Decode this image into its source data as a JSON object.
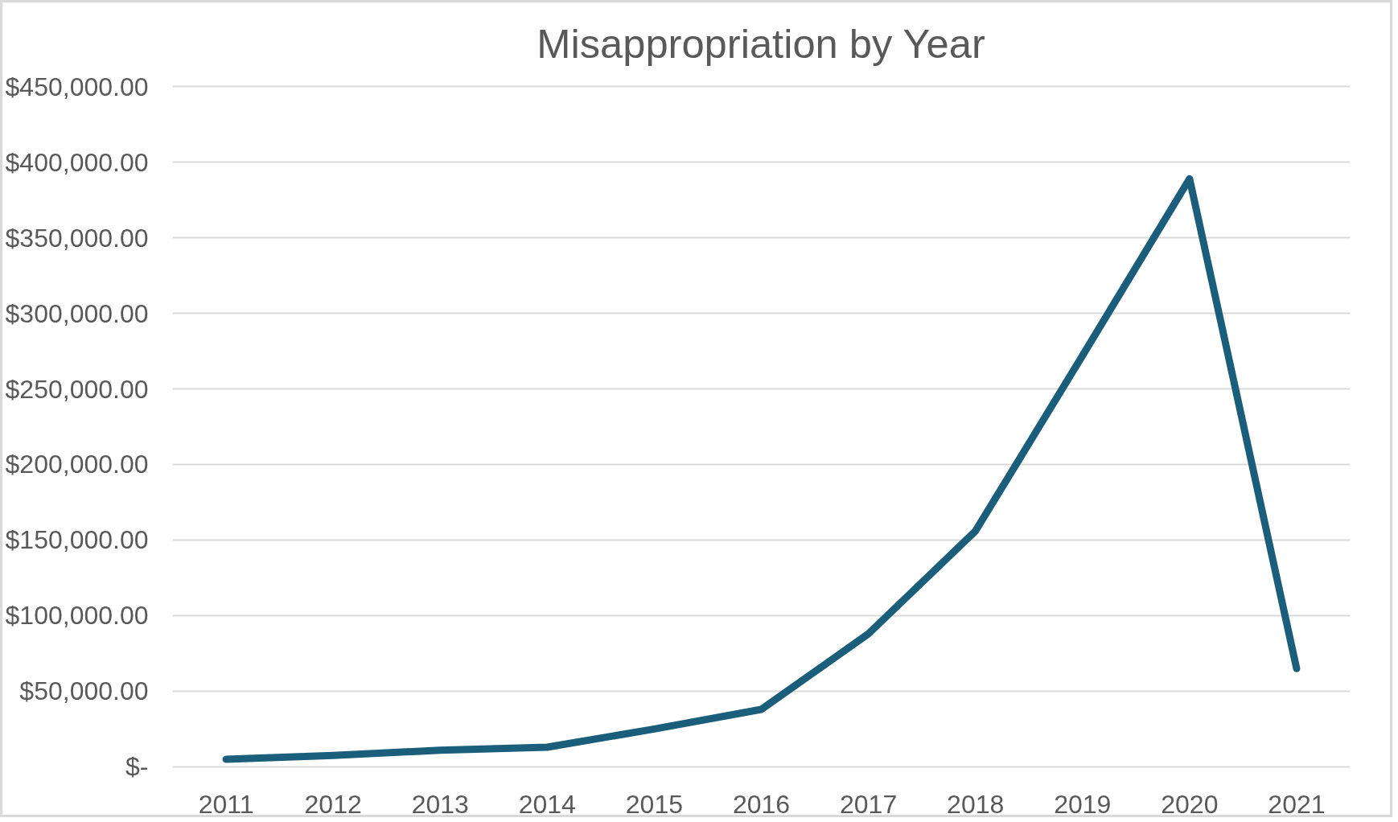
{
  "chart_data": {
    "type": "line",
    "title": "Misappropriation by Year",
    "categories": [
      "2011",
      "2012",
      "2013",
      "2014",
      "2015",
      "2016",
      "2017",
      "2018",
      "2019",
      "2020",
      "2021"
    ],
    "series": [
      {
        "color": "#1b5e7b",
        "values": [
          5000,
          7500,
          11000,
          13000,
          25000,
          38000,
          88000,
          156000,
          272000,
          389000,
          65000
        ]
      }
    ],
    "ylim": [
      0,
      450000
    ],
    "yticks": [
      {
        "value": 0,
        "label": "$-"
      },
      {
        "value": 50000,
        "label": "$50,000.00"
      },
      {
        "value": 100000,
        "label": "$100,000.00"
      },
      {
        "value": 150000,
        "label": "$150,000.00"
      },
      {
        "value": 200000,
        "label": "$200,000.00"
      },
      {
        "value": 250000,
        "label": "$250,000.00"
      },
      {
        "value": 300000,
        "label": "$300,000.00"
      },
      {
        "value": 350000,
        "label": "$350,000.00"
      },
      {
        "value": 400000,
        "label": "$400,000.00"
      },
      {
        "value": 450000,
        "label": "$450,000.00"
      }
    ],
    "grid": "y",
    "marker": "none",
    "line_style": "solid"
  }
}
